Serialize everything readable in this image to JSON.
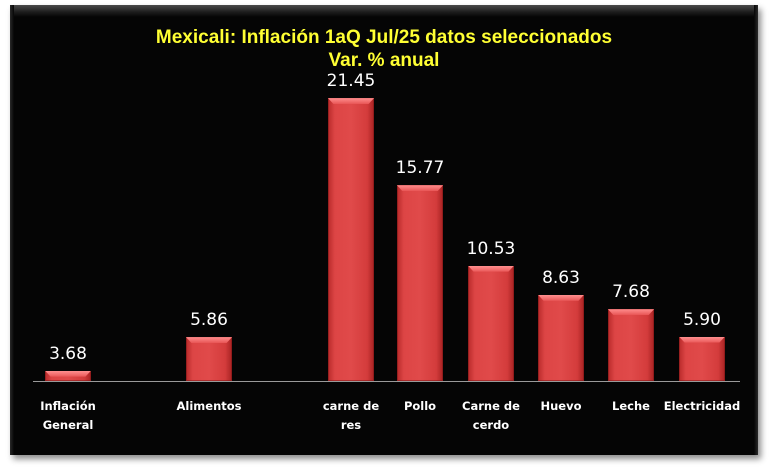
{
  "chart_data": {
    "type": "bar",
    "title": "Mexicali: Inflación 1aQ Jul/25 datos seleccionados",
    "subtitle": "Var. % anual",
    "xlabel": "",
    "ylabel": "",
    "categories": [
      "Inflación General",
      "Alimentos",
      "carne de res",
      "Pollo",
      "Carne de cerdo",
      "Huevo",
      "Leche",
      "Electricidad"
    ],
    "category_lines": [
      [
        "Inflación",
        "General"
      ],
      [
        "Alimentos"
      ],
      [
        "carne de",
        "res"
      ],
      [
        "Pollo"
      ],
      [
        "Carne de",
        "cerdo"
      ],
      [
        "Huevo"
      ],
      [
        "Leche"
      ],
      [
        "Electricidad"
      ]
    ],
    "values": [
      3.68,
      5.86,
      21.45,
      15.77,
      10.53,
      8.63,
      7.68,
      5.9
    ],
    "value_labels": [
      "3.68",
      "5.86",
      "21.45",
      "15.77",
      "10.53",
      "8.63",
      "7.68",
      "5.90"
    ],
    "ylim": [
      3,
      22
    ],
    "grid": false,
    "legend": "none",
    "colors": {
      "bar": "#e04a4a",
      "background": "#050505",
      "title": "#ffff33",
      "labels": "#ffffff",
      "axis": "#9a9a9a"
    }
  }
}
